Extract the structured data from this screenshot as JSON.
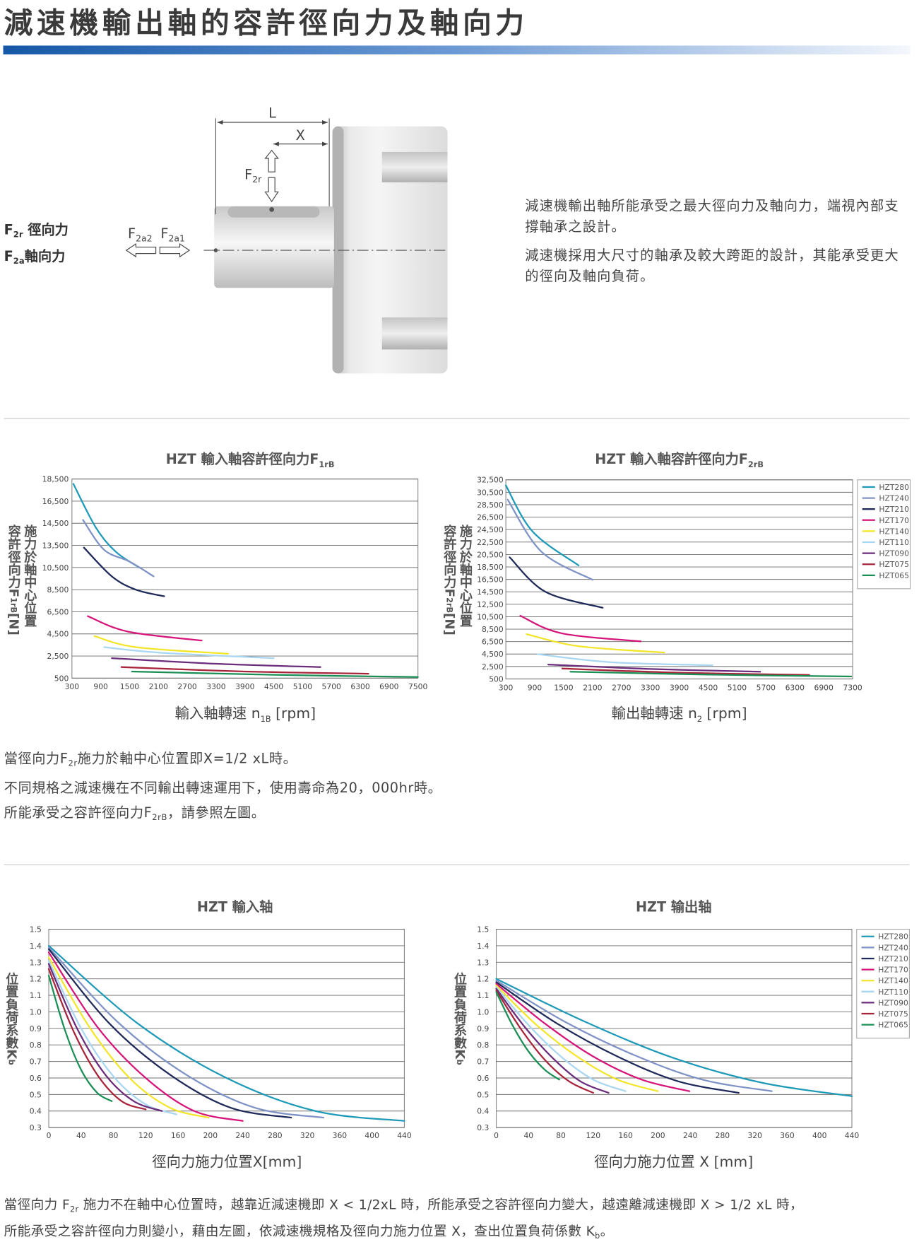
{
  "header": {
    "title": "減速機輸出軸的容許徑向力及軸向力"
  },
  "diagram": {
    "length": "L",
    "distance": "X",
    "radial_force": [
      "F",
      "2r"
    ],
    "axial_force_2": [
      "F",
      "2a2"
    ],
    "axial_force_1": [
      "F",
      "2a1"
    ],
    "legend": [
      [
        "F",
        "2r",
        " 徑向力"
      ],
      [
        "F",
        "2a",
        "軸向力"
      ]
    ]
  },
  "description": [
    "減速機輸出軸所能承受之最大徑向力及軸向力，端視內部支撐軸承之設計。",
    "減速機採用大尺寸的軸承及較大跨距的設計，其能承受更大的徑向及軸向負荷。"
  ],
  "chart_data": [
    {
      "type": "line",
      "title": [
        "HZT 輸入軸容許徑向力F",
        "1rB"
      ],
      "x_label": [
        "輸入軸轉速 n",
        "1B",
        " [rpm]"
      ],
      "y_label": [
        [
          "施力於軸中心位置"
        ],
        [
          "容許徑向力F",
          "1rB",
          "[N]"
        ]
      ],
      "xlim": [
        300,
        7500
      ],
      "xticks": [
        300,
        900,
        1500,
        2100,
        2700,
        3300,
        3900,
        4500,
        5100,
        5700,
        6300,
        6900,
        7500
      ],
      "ylim": [
        500,
        18500
      ],
      "yticks": [
        500,
        {
          "value": 2500,
          "label": "2,500"
        },
        {
          "value": 4500,
          "label": "4,500"
        },
        {
          "value": 6500,
          "label": "6,500"
        },
        {
          "value": 8500,
          "label": "8,500"
        },
        {
          "value": 10500,
          "label": "10,500"
        },
        {
          "value": 13500,
          "label": "13,500"
        },
        {
          "value": 14500,
          "label": "14,500"
        },
        {
          "value": 16500,
          "label": "16,500"
        },
        {
          "value": 18500,
          "label": "18,500"
        }
      ],
      "grid": true,
      "series": [
        {
          "color": "#1e9ab8",
          "x": [
            330,
            800,
            1220,
            1700
          ],
          "values": [
            18060,
            14300,
            12600,
            10500
          ]
        },
        {
          "color": "#7f92c6",
          "x": [
            530,
            970,
            1500,
            2000
          ],
          "values": [
            14800,
            12900,
            11300,
            9700
          ]
        },
        {
          "color": "#1f2a5a",
          "x": [
            550,
            1130,
            1630,
            2220
          ],
          "values": [
            13200,
            9700,
            8500,
            7900
          ]
        },
        {
          "color": "#d6157a",
          "x": [
            630,
            1470,
            3000
          ],
          "values": [
            6100,
            4700,
            3900
          ]
        },
        {
          "color": "#f2e52a",
          "x": [
            770,
            1630,
            3550
          ],
          "values": [
            4300,
            3300,
            2700
          ]
        },
        {
          "color": "#a9d6f0",
          "x": [
            970,
            2130,
            4500
          ],
          "values": [
            3300,
            2800,
            2300
          ]
        },
        {
          "color": "#6b2c7c",
          "x": [
            1130,
            3300,
            5470
          ],
          "values": [
            2300,
            1800,
            1500
          ]
        },
        {
          "color": "#a8243a",
          "x": [
            1330,
            3900,
            6470
          ],
          "values": [
            1500,
            1100,
            900
          ]
        },
        {
          "color": "#1a8f55",
          "x": [
            1550,
            4500,
            7500
          ],
          "values": [
            1100,
            800,
            600
          ]
        }
      ]
    },
    {
      "type": "line",
      "title": [
        "HZT 輸入軸容許徑向力F",
        "2rB"
      ],
      "x_label": [
        "輸出軸轉速 n",
        "2",
        " [rpm]"
      ],
      "y_label": [
        [
          "施力於軸中心位置"
        ],
        [
          "容許徑向力F",
          "2rB",
          "[N]"
        ]
      ],
      "xlim": [
        300,
        7300
      ],
      "xticks": [
        300,
        900,
        1500,
        2100,
        2700,
        3300,
        3900,
        4500,
        5100,
        5700,
        6300,
        6900,
        7300
      ],
      "ylim": [
        500,
        32500
      ],
      "yticks": [
        500,
        {
          "value": 2500,
          "label": "2,500"
        },
        {
          "value": 4500,
          "label": "4,500"
        },
        {
          "value": 6500,
          "label": "6,500"
        },
        {
          "value": 8500,
          "label": "8,500"
        },
        {
          "value": 10500,
          "label": "10,500"
        },
        {
          "value": 12500,
          "label": "12,500"
        },
        {
          "value": 14500,
          "label": "14,500"
        },
        {
          "value": 16500,
          "label": "16,500"
        },
        {
          "value": 18500,
          "label": "18,500"
        },
        {
          "value": 20500,
          "label": "20,500"
        },
        {
          "value": 22500,
          "label": "22,500"
        },
        {
          "value": 24500,
          "label": "24,500"
        },
        {
          "value": 26500,
          "label": "26,500"
        },
        {
          "value": 28500,
          "label": "28,500"
        },
        {
          "value": 30500,
          "label": "30,500"
        },
        {
          "value": 32500,
          "label": "32,500"
        }
      ],
      "grid": true,
      "legend": "right",
      "series": [
        {
          "name": "HZT280",
          "color": "#1e9ab8",
          "x": [
            300,
            860,
            1810
          ],
          "values": [
            31600,
            24150,
            18750
          ]
        },
        {
          "name": "HZT240",
          "color": "#7f92c6",
          "x": [
            340,
            1040,
            2100
          ],
          "values": [
            29300,
            20940,
            16440
          ]
        },
        {
          "name": "HZT210",
          "color": "#1f2a5a",
          "x": [
            380,
            1120,
            2310
          ],
          "values": [
            20040,
            14510,
            11940
          ]
        },
        {
          "name": "HZT170",
          "color": "#d6157a",
          "x": [
            600,
            1460,
            3100
          ],
          "values": [
            10650,
            7830,
            6540
          ]
        },
        {
          "name": "HZT140",
          "color": "#f2e52a",
          "x": [
            730,
            1810,
            3590
          ],
          "values": [
            7700,
            5770,
            4740
          ]
        },
        {
          "name": "HZT110",
          "color": "#a9d6f0",
          "x": [
            960,
            2460,
            4590
          ],
          "values": [
            4480,
            3200,
            2690
          ]
        },
        {
          "name": "HZT090",
          "color": "#6b2c7c",
          "x": [
            1180,
            3300,
            5580
          ],
          "values": [
            2810,
            2100,
            1660
          ]
        },
        {
          "name": "HZT075",
          "color": "#a8243a",
          "x": [
            1470,
            3900,
            6600
          ],
          "values": [
            2170,
            1500,
            1140
          ]
        },
        {
          "name": "HZT065",
          "color": "#1a8f55",
          "x": [
            1640,
            4500,
            7280
          ],
          "values": [
            1660,
            1200,
            890
          ]
        }
      ]
    },
    {
      "type": "line",
      "title": [
        "HZT 輸入轴"
      ],
      "x_label": [
        "徑向力施力位置X[mm]"
      ],
      "y_label": [
        [
          "位置負荷系數K",
          "b"
        ]
      ],
      "xlim": [
        0,
        440
      ],
      "xticks": [
        0,
        40,
        80,
        120,
        160,
        200,
        240,
        280,
        320,
        360,
        400,
        440
      ],
      "ylim": [
        0.3,
        1.5
      ],
      "yticks": [
        0.3,
        0.4,
        0.5,
        0.6,
        0.7,
        0.8,
        0.9,
        {
          "value": 1,
          "label": "1.0"
        },
        1.1,
        1.2,
        1.3,
        1.4,
        1.5
      ],
      "grid": true,
      "series": [
        {
          "color": "#1e9ab8",
          "x": [
            0,
            110,
            220,
            330,
            440
          ],
          "values": [
            1.4,
            0.93,
            0.6,
            0.4,
            0.34
          ]
        },
        {
          "color": "#7f92c6",
          "x": [
            0,
            85,
            170,
            255,
            340
          ],
          "values": [
            1.39,
            0.94,
            0.62,
            0.42,
            0.36
          ]
        },
        {
          "color": "#1f2a5a",
          "x": [
            0,
            75,
            150,
            225,
            300
          ],
          "values": [
            1.38,
            0.93,
            0.62,
            0.42,
            0.36
          ]
        },
        {
          "color": "#d6157a",
          "x": [
            0,
            60,
            120,
            180,
            240
          ],
          "values": [
            1.36,
            0.91,
            0.6,
            0.4,
            0.34
          ]
        },
        {
          "color": "#f2e52a",
          "x": [
            0,
            50,
            100,
            150,
            198
          ],
          "values": [
            1.33,
            0.91,
            0.6,
            0.42,
            0.36
          ]
        },
        {
          "color": "#a9d6f0",
          "x": [
            0,
            40,
            80,
            120,
            158
          ],
          "values": [
            1.31,
            0.9,
            0.61,
            0.44,
            0.38
          ]
        },
        {
          "color": "#6b2c7c",
          "x": [
            0,
            35,
            70,
            105,
            140
          ],
          "values": [
            1.29,
            0.9,
            0.62,
            0.46,
            0.4
          ]
        },
        {
          "color": "#a8243a",
          "x": [
            0,
            30,
            60,
            90,
            120
          ],
          "values": [
            1.26,
            0.89,
            0.62,
            0.46,
            0.41
          ]
        },
        {
          "color": "#1a8f55",
          "x": [
            0,
            20,
            40,
            60,
            78
          ],
          "values": [
            1.22,
            0.89,
            0.65,
            0.51,
            0.46
          ]
        }
      ]
    },
    {
      "type": "line",
      "title": [
        "HZT 输出轴"
      ],
      "x_label": [
        "徑向力施力位置 X [mm]"
      ],
      "y_label": [
        [
          "位置負荷系數K",
          "b"
        ]
      ],
      "xlim": [
        0,
        440
      ],
      "xticks": [
        0,
        40,
        80,
        120,
        160,
        200,
        240,
        280,
        320,
        360,
        400,
        440
      ],
      "ylim": [
        0.3,
        1.5
      ],
      "yticks": [
        0.3,
        0.4,
        0.5,
        0.6,
        0.7,
        0.8,
        0.9,
        {
          "value": 1,
          "label": "1.0"
        },
        1.1,
        1.2,
        1.3,
        1.4,
        1.5
      ],
      "grid": true,
      "legend": "right",
      "series": [
        {
          "name": "HZT280",
          "color": "#1e9ab8",
          "x": [
            0,
            110,
            220,
            330,
            440
          ],
          "values": [
            1.2,
            0.94,
            0.72,
            0.57,
            0.49
          ]
        },
        {
          "name": "HZT240",
          "color": "#7f92c6",
          "x": [
            0,
            85,
            170,
            255,
            341
          ],
          "values": [
            1.19,
            0.94,
            0.74,
            0.59,
            0.52
          ]
        },
        {
          "name": "HZT210",
          "color": "#1f2a5a",
          "x": [
            0,
            75,
            150,
            225,
            300
          ],
          "values": [
            1.18,
            0.93,
            0.73,
            0.58,
            0.51
          ]
        },
        {
          "name": "HZT170",
          "color": "#d6157a",
          "x": [
            0,
            60,
            120,
            180,
            239
          ],
          "values": [
            1.17,
            0.93,
            0.73,
            0.59,
            0.52
          ]
        },
        {
          "name": "HZT140",
          "color": "#f2e52a",
          "x": [
            0,
            50,
            100,
            150,
            200
          ],
          "values": [
            1.16,
            0.92,
            0.73,
            0.59,
            0.52
          ]
        },
        {
          "name": "HZT110",
          "color": "#a9d6f0",
          "x": [
            0,
            40,
            80,
            120,
            160
          ],
          "values": [
            1.15,
            0.92,
            0.73,
            0.59,
            0.52
          ]
        },
        {
          "name": "HZT090",
          "color": "#6b2c7c",
          "x": [
            0,
            35,
            70,
            104,
            139
          ],
          "values": [
            1.14,
            0.91,
            0.72,
            0.58,
            0.51
          ]
        },
        {
          "name": "HZT075",
          "color": "#a8243a",
          "x": [
            0,
            30,
            60,
            90,
            120
          ],
          "values": [
            1.13,
            0.9,
            0.71,
            0.58,
            0.51
          ]
        },
        {
          "name": "HZT065",
          "color": "#1a8f55",
          "x": [
            0,
            20,
            40,
            60,
            78
          ],
          "values": [
            1.12,
            0.92,
            0.76,
            0.65,
            0.59
          ]
        }
      ]
    }
  ],
  "notes_1": [
    [
      "當徑向力F",
      "2r",
      "施力於軸中心位置即X=1/2 xL時。"
    ],
    [
      "不同規格之減速機在不同輸出轉速運用下，使用壽命為20，000hr時。"
    ],
    [
      "所能承受之容許徑向力F",
      "2rB",
      "，請參照左圖。"
    ]
  ],
  "notes_2": [
    [
      "當徑向力 F",
      "2r",
      " 施力不在軸中心位置時，越靠近減速機即 X < 1/2xL 時，所能承受之容許徑向力變大，越遠離減速機即 X > 1/2 xL 時，"
    ],
    [
      "所能承受之容許徑向力則變小，藉由左圖，依減速機規格及徑向力施力位置 X，查出位置負荷係數 K",
      "b",
      "。"
    ]
  ]
}
